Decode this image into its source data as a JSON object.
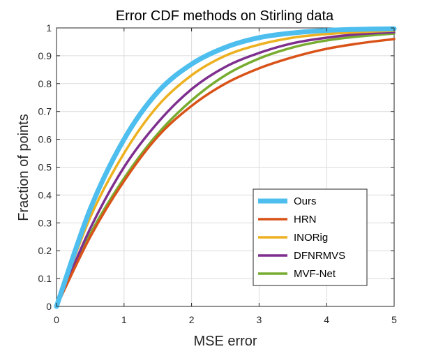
{
  "chart_data": {
    "type": "line",
    "title": "Error CDF methods on Stirling data",
    "xlabel": "MSE error",
    "ylabel": "Fraction of points",
    "xlim": [
      0,
      5
    ],
    "ylim": [
      0,
      1
    ],
    "grid": true,
    "legend_position": "lower-right",
    "xticks": [
      0,
      1,
      2,
      3,
      4,
      5
    ],
    "yticks": [
      0,
      0.1,
      0.2,
      0.3,
      0.4,
      0.5,
      0.6,
      0.7,
      0.8,
      0.9,
      1
    ],
    "xtick_labels": [
      "0",
      "1",
      "2",
      "3",
      "4",
      "5"
    ],
    "ytick_labels": [
      "0",
      "0.1",
      "0.2",
      "0.3",
      "0.4",
      "0.5",
      "0.6",
      "0.7",
      "0.8",
      "0.9",
      "1"
    ],
    "x": [
      0,
      0.5,
      1,
      1.5,
      2,
      2.5,
      3,
      3.5,
      4,
      4.5,
      5
    ],
    "series": [
      {
        "name": "Ours",
        "color": "#4DBEEE",
        "values": [
          0,
          0.35,
          0.6,
          0.77,
          0.87,
          0.93,
          0.965,
          0.982,
          0.991,
          0.995,
          0.997
        ]
      },
      {
        "name": "HRN",
        "color": "#D95319",
        "values": [
          0,
          0.25,
          0.45,
          0.61,
          0.72,
          0.8,
          0.855,
          0.895,
          0.925,
          0.945,
          0.96
        ]
      },
      {
        "name": "INORig",
        "color": "#EDB120",
        "values": [
          0,
          0.32,
          0.55,
          0.72,
          0.83,
          0.9,
          0.94,
          0.965,
          0.978,
          0.985,
          0.99
        ]
      },
      {
        "name": "DFNRMVS",
        "color": "#7E2F8E",
        "values": [
          0,
          0.28,
          0.5,
          0.66,
          0.78,
          0.86,
          0.91,
          0.945,
          0.965,
          0.978,
          0.985
        ]
      },
      {
        "name": "MVF-Net",
        "color": "#77AC30",
        "values": [
          0,
          0.26,
          0.46,
          0.62,
          0.74,
          0.83,
          0.89,
          0.93,
          0.955,
          0.97,
          0.98
        ]
      }
    ]
  }
}
